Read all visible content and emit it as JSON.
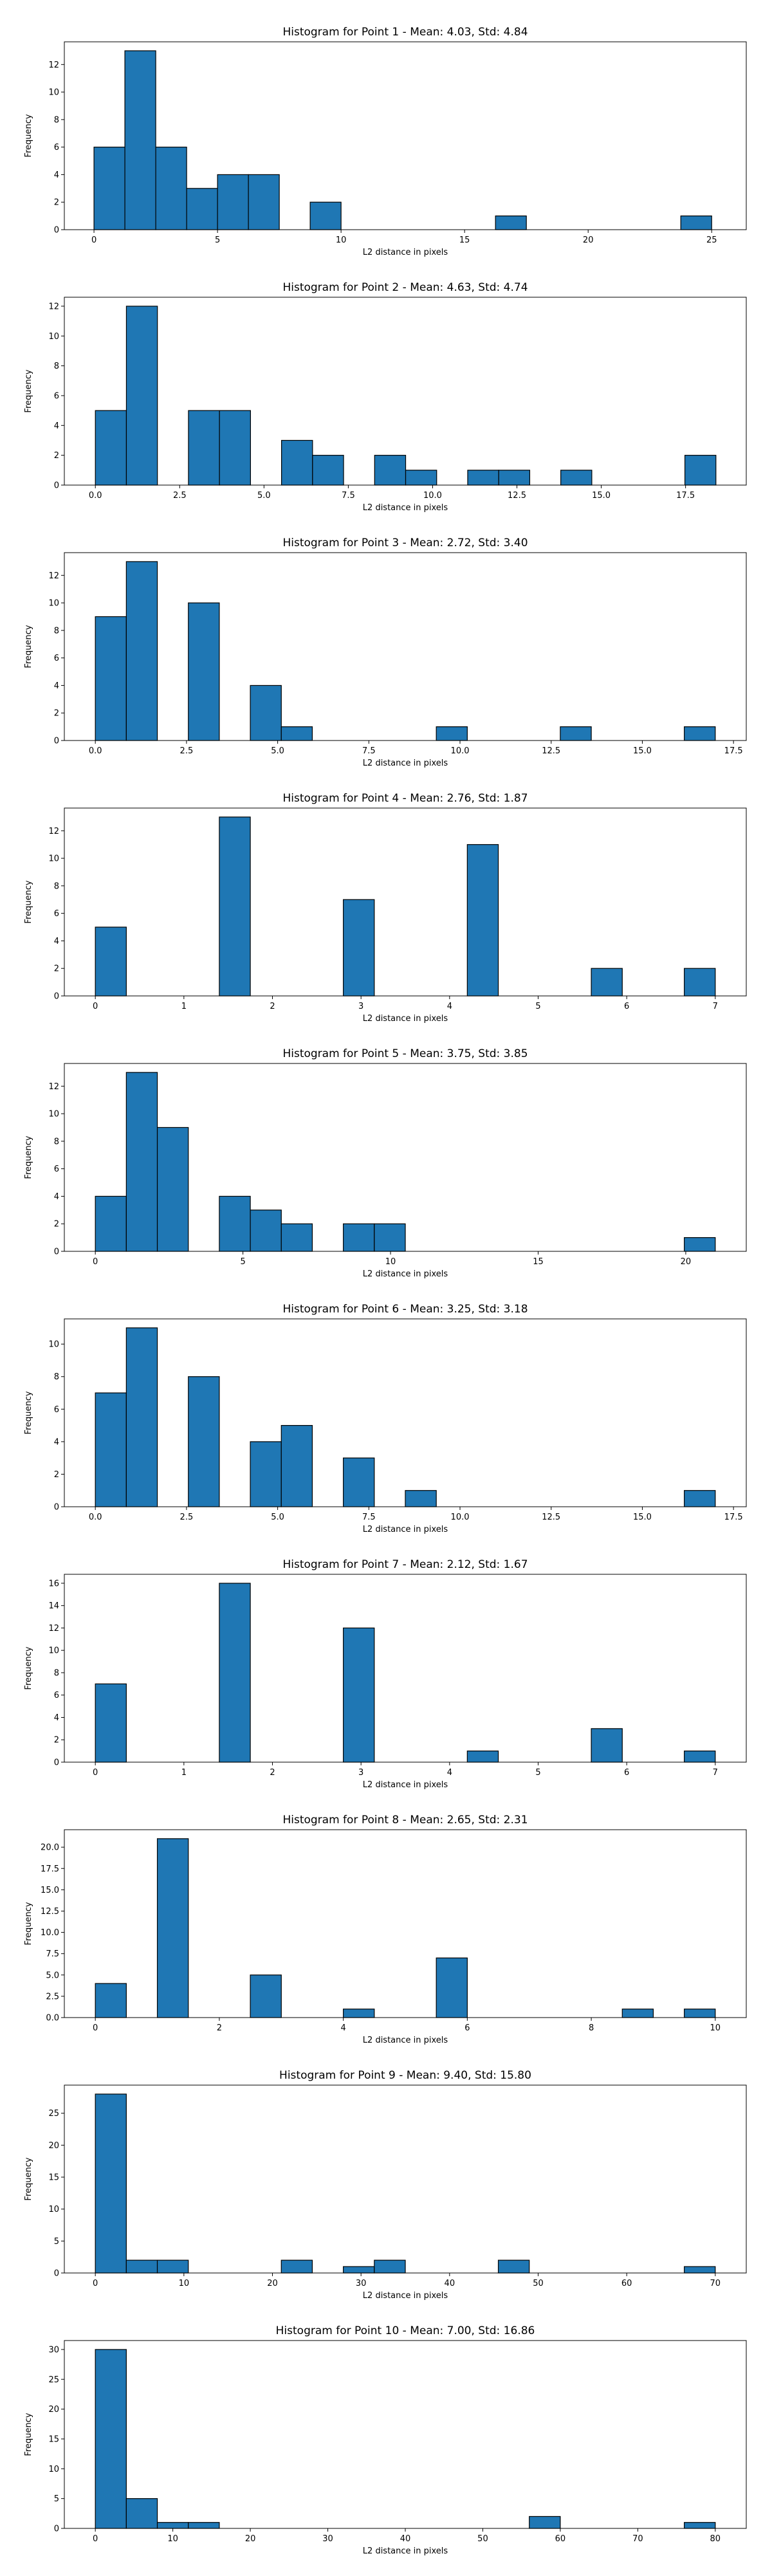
{
  "style": {
    "bar_color": "#1f77b4",
    "edge_color": "#000000"
  },
  "chart_data": [
    {
      "type": "bar",
      "title": "Histogram for Point 1 - Mean: 4.03, Std: 4.84",
      "xlabel": "L2 distance in pixels",
      "ylabel": "Frequency",
      "xlim": [
        -1.2,
        26.4
      ],
      "ylim": [
        0,
        13.65
      ],
      "xticks": [
        0,
        5,
        10,
        15,
        20,
        25
      ],
      "xtick_labels": [
        "0",
        "5",
        "10",
        "15",
        "20",
        "25"
      ],
      "yticks": [
        0,
        2,
        4,
        6,
        8,
        10,
        12
      ],
      "ytick_labels": [
        "0",
        "2",
        "4",
        "6",
        "8",
        "10",
        "12"
      ],
      "bins": [
        [
          0,
          1.25,
          6
        ],
        [
          1.25,
          2.5,
          13
        ],
        [
          2.5,
          3.75,
          6
        ],
        [
          3.75,
          5.0,
          3
        ],
        [
          5.0,
          6.25,
          4
        ],
        [
          6.25,
          7.5,
          4
        ],
        [
          8.75,
          10.0,
          2
        ],
        [
          16.25,
          17.5,
          1
        ],
        [
          23.75,
          25.0,
          1
        ]
      ]
    },
    {
      "type": "bar",
      "title": "Histogram for Point 2 - Mean: 4.63, Std: 4.74",
      "xlabel": "L2 distance in pixels",
      "ylabel": "Frequency",
      "xlim": [
        -0.92,
        19.3
      ],
      "ylim": [
        0,
        12.6
      ],
      "xticks": [
        0,
        2.5,
        5,
        7.5,
        10,
        12.5,
        15,
        17.5
      ],
      "xtick_labels": [
        "0.0",
        "2.5",
        "5.0",
        "7.5",
        "10.0",
        "12.5",
        "15.0",
        "17.5"
      ],
      "yticks": [
        0,
        2,
        4,
        6,
        8,
        10,
        12
      ],
      "ytick_labels": [
        "0",
        "2",
        "4",
        "6",
        "8",
        "10",
        "12"
      ],
      "bins": [
        [
          0,
          0.92,
          5
        ],
        [
          0.92,
          1.84,
          12
        ],
        [
          2.76,
          3.68,
          5
        ],
        [
          3.68,
          4.6,
          5
        ],
        [
          5.52,
          6.44,
          3
        ],
        [
          6.44,
          7.36,
          2
        ],
        [
          8.28,
          9.2,
          2
        ],
        [
          9.2,
          10.12,
          1
        ],
        [
          11.04,
          11.96,
          1
        ],
        [
          11.96,
          12.88,
          1
        ],
        [
          13.8,
          14.72,
          1
        ],
        [
          17.48,
          18.4,
          2
        ]
      ]
    },
    {
      "type": "bar",
      "title": "Histogram for Point 3 - Mean: 2.72, Std: 3.40",
      "xlabel": "L2 distance in pixels",
      "ylabel": "Frequency",
      "xlim": [
        -0.85,
        17.85
      ],
      "ylim": [
        0,
        13.65
      ],
      "xticks": [
        0,
        2.5,
        5,
        7.5,
        10,
        12.5,
        15,
        17.5
      ],
      "xtick_labels": [
        "0.0",
        "2.5",
        "5.0",
        "7.5",
        "10.0",
        "12.5",
        "15.0",
        "17.5"
      ],
      "yticks": [
        0,
        2,
        4,
        6,
        8,
        10,
        12
      ],
      "ytick_labels": [
        "0",
        "2",
        "4",
        "6",
        "8",
        "10",
        "12"
      ],
      "bins": [
        [
          0,
          0.85,
          9
        ],
        [
          0.85,
          1.7,
          13
        ],
        [
          2.55,
          3.4,
          10
        ],
        [
          4.25,
          5.1,
          4
        ],
        [
          5.1,
          5.95,
          1
        ],
        [
          9.35,
          10.2,
          1
        ],
        [
          12.75,
          13.6,
          1
        ],
        [
          16.15,
          17.0,
          1
        ]
      ]
    },
    {
      "type": "bar",
      "title": "Histogram for Point 4 - Mean: 2.76, Std: 1.87",
      "xlabel": "L2 distance in pixels",
      "ylabel": "Frequency",
      "xlim": [
        -0.35,
        7.35
      ],
      "ylim": [
        0,
        13.65
      ],
      "xticks": [
        0,
        1,
        2,
        3,
        4,
        5,
        6,
        7
      ],
      "xtick_labels": [
        "0",
        "1",
        "2",
        "3",
        "4",
        "5",
        "6",
        "7"
      ],
      "yticks": [
        0,
        2,
        4,
        6,
        8,
        10,
        12
      ],
      "ytick_labels": [
        "0",
        "2",
        "4",
        "6",
        "8",
        "10",
        "12"
      ],
      "bins": [
        [
          0,
          0.35,
          5
        ],
        [
          1.4,
          1.75,
          13
        ],
        [
          2.8,
          3.15,
          7
        ],
        [
          4.2,
          4.55,
          11
        ],
        [
          5.6,
          5.95,
          2
        ],
        [
          6.65,
          7.0,
          2
        ]
      ]
    },
    {
      "type": "bar",
      "title": "Histogram for Point 5 - Mean: 3.75, Std: 3.85",
      "xlabel": "L2 distance in pixels",
      "ylabel": "Frequency",
      "xlim": [
        -1.05,
        22.05
      ],
      "ylim": [
        0,
        13.65
      ],
      "xticks": [
        0,
        5,
        10,
        15,
        20
      ],
      "xtick_labels": [
        "0",
        "5",
        "10",
        "15",
        "20"
      ],
      "yticks": [
        0,
        2,
        4,
        6,
        8,
        10,
        12
      ],
      "ytick_labels": [
        "0",
        "2",
        "4",
        "6",
        "8",
        "10",
        "12"
      ],
      "bins": [
        [
          0,
          1.05,
          4
        ],
        [
          1.05,
          2.1,
          13
        ],
        [
          2.1,
          3.15,
          9
        ],
        [
          4.2,
          5.25,
          4
        ],
        [
          5.25,
          6.3,
          3
        ],
        [
          6.3,
          7.35,
          2
        ],
        [
          8.4,
          9.45,
          2
        ],
        [
          9.45,
          10.5,
          2
        ],
        [
          19.95,
          21.0,
          1
        ]
      ]
    },
    {
      "type": "bar",
      "title": "Histogram for Point 6 - Mean: 3.25, Std: 3.18",
      "xlabel": "L2 distance in pixels",
      "ylabel": "Frequency",
      "xlim": [
        -0.85,
        17.85
      ],
      "ylim": [
        0,
        11.55
      ],
      "xticks": [
        0,
        2.5,
        5,
        7.5,
        10,
        12.5,
        15,
        17.5
      ],
      "xtick_labels": [
        "0.0",
        "2.5",
        "5.0",
        "7.5",
        "10.0",
        "12.5",
        "15.0",
        "17.5"
      ],
      "yticks": [
        0,
        2,
        4,
        6,
        8,
        10
      ],
      "ytick_labels": [
        "0",
        "2",
        "4",
        "6",
        "8",
        "10"
      ],
      "bins": [
        [
          0,
          0.85,
          7
        ],
        [
          0.85,
          1.7,
          11
        ],
        [
          2.55,
          3.4,
          8
        ],
        [
          4.25,
          5.1,
          4
        ],
        [
          5.1,
          5.95,
          5
        ],
        [
          6.8,
          7.65,
          3
        ],
        [
          8.5,
          9.35,
          1
        ],
        [
          16.15,
          17.0,
          1
        ]
      ]
    },
    {
      "type": "bar",
      "title": "Histogram for Point 7 - Mean: 2.12, Std: 1.67",
      "xlabel": "L2 distance in pixels",
      "ylabel": "Frequency",
      "xlim": [
        -0.35,
        7.35
      ],
      "ylim": [
        0,
        16.8
      ],
      "xticks": [
        0,
        1,
        2,
        3,
        4,
        5,
        6,
        7
      ],
      "xtick_labels": [
        "0",
        "1",
        "2",
        "3",
        "4",
        "5",
        "6",
        "7"
      ],
      "yticks": [
        0,
        2,
        4,
        6,
        8,
        10,
        12,
        14,
        16
      ],
      "ytick_labels": [
        "0",
        "2",
        "4",
        "6",
        "8",
        "10",
        "12",
        "14",
        "16"
      ],
      "bins": [
        [
          0,
          0.35,
          7
        ],
        [
          1.4,
          1.75,
          16
        ],
        [
          2.8,
          3.15,
          12
        ],
        [
          4.2,
          4.55,
          1
        ],
        [
          5.6,
          5.95,
          3
        ],
        [
          6.65,
          7.0,
          1
        ]
      ]
    },
    {
      "type": "bar",
      "title": "Histogram for Point 8 - Mean: 2.65, Std: 2.31",
      "xlabel": "L2 distance in pixels",
      "ylabel": "Frequency",
      "xlim": [
        -0.5,
        10.5
      ],
      "ylim": [
        0,
        22.05
      ],
      "xticks": [
        0,
        2,
        4,
        6,
        8,
        10
      ],
      "xtick_labels": [
        "0",
        "2",
        "4",
        "6",
        "8",
        "10"
      ],
      "yticks": [
        0,
        2.5,
        5,
        7.5,
        10,
        12.5,
        15,
        17.5,
        20
      ],
      "ytick_labels": [
        "0.0",
        "2.5",
        "5.0",
        "7.5",
        "10.0",
        "12.5",
        "15.0",
        "17.5",
        "20.0"
      ],
      "bins": [
        [
          0,
          0.5,
          4
        ],
        [
          1.0,
          1.5,
          21
        ],
        [
          2.5,
          3.0,
          5
        ],
        [
          4.0,
          4.5,
          1
        ],
        [
          5.5,
          6.0,
          7
        ],
        [
          8.5,
          9.0,
          1
        ],
        [
          9.5,
          10.0,
          1
        ]
      ]
    },
    {
      "type": "bar",
      "title": "Histogram for Point 9 - Mean: 9.40, Std: 15.80",
      "xlabel": "L2 distance in pixels",
      "ylabel": "Frequency",
      "xlim": [
        -3.5,
        73.5
      ],
      "ylim": [
        0,
        29.4
      ],
      "xticks": [
        0,
        10,
        20,
        30,
        40,
        50,
        60,
        70
      ],
      "xtick_labels": [
        "0",
        "10",
        "20",
        "30",
        "40",
        "50",
        "60",
        "70"
      ],
      "yticks": [
        0,
        5,
        10,
        15,
        20,
        25
      ],
      "ytick_labels": [
        "0",
        "5",
        "10",
        "15",
        "20",
        "25"
      ],
      "bins": [
        [
          0,
          3.5,
          28
        ],
        [
          3.5,
          7.0,
          2
        ],
        [
          7.0,
          10.5,
          2
        ],
        [
          21.0,
          24.5,
          2
        ],
        [
          28.0,
          31.5,
          1
        ],
        [
          31.5,
          35.0,
          2
        ],
        [
          45.5,
          49.0,
          2
        ],
        [
          66.5,
          70.0,
          1
        ]
      ]
    },
    {
      "type": "bar",
      "title": "Histogram for Point 10 - Mean: 7.00, Std: 16.86",
      "xlabel": "L2 distance in pixels",
      "ylabel": "Frequency",
      "xlim": [
        -4.0,
        84.0
      ],
      "ylim": [
        0,
        31.5
      ],
      "xticks": [
        0,
        10,
        20,
        30,
        40,
        50,
        60,
        70,
        80
      ],
      "xtick_labels": [
        "0",
        "10",
        "20",
        "30",
        "40",
        "50",
        "60",
        "70",
        "80"
      ],
      "yticks": [
        0,
        5,
        10,
        15,
        20,
        25,
        30
      ],
      "ytick_labels": [
        "0",
        "5",
        "10",
        "15",
        "20",
        "25",
        "30"
      ],
      "bins": [
        [
          0,
          4.0,
          30
        ],
        [
          4.0,
          8.0,
          5
        ],
        [
          8.0,
          12.0,
          1
        ],
        [
          12.0,
          16.0,
          1
        ],
        [
          56.0,
          60.0,
          2
        ],
        [
          76.0,
          80.0,
          1
        ]
      ]
    }
  ]
}
